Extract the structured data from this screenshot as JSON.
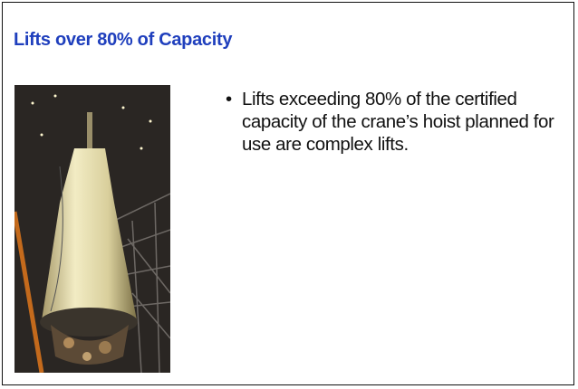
{
  "slide": {
    "title": "Lifts over 80% of Capacity",
    "bullets": [
      "Lifts exceeding 80% of the certified capacity of the crane’s hoist planned for use are complex lifts."
    ]
  }
}
